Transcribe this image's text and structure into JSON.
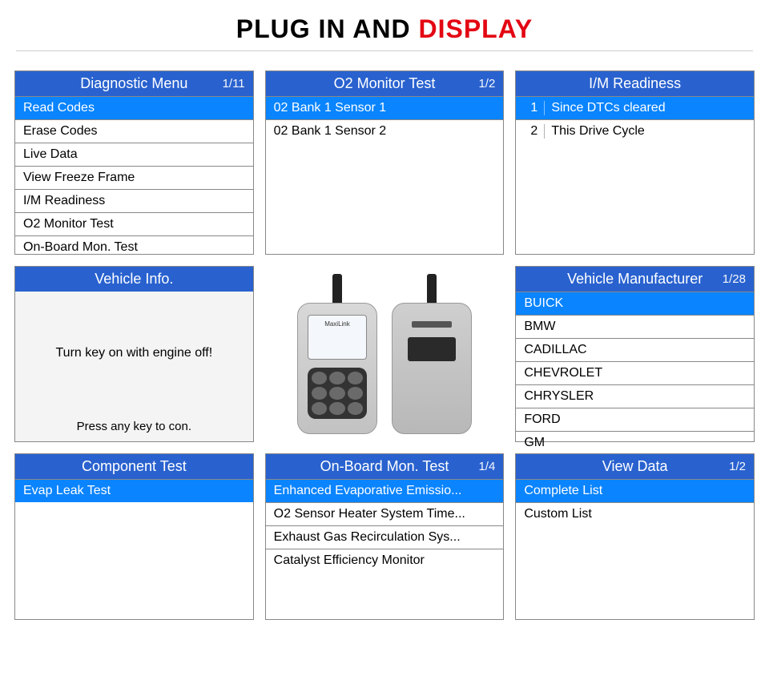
{
  "title": {
    "part1": "PLUG IN AND ",
    "part2": "DISPLAY"
  },
  "colors": {
    "header_bg": "#2962cf",
    "selected_bg": "#0a84ff",
    "accent": "#e30613",
    "border": "#888888"
  },
  "panels": {
    "diagnostic": {
      "title": "Diagnostic Menu",
      "page": "1/11",
      "items": [
        "Read Codes",
        "Erase Codes",
        "Live Data",
        "View Freeze Frame",
        "I/M Readiness",
        "O2 Monitor Test",
        "On-Board Mon. Test"
      ],
      "selected_index": 0
    },
    "o2_monitor": {
      "title": "O2 Monitor Test",
      "page": "1/2",
      "items": [
        "02 Bank 1 Sensor 1",
        "02 Bank 1 Sensor 2"
      ],
      "selected_index": 0
    },
    "im_readiness": {
      "title": "I/M Readiness",
      "page": "",
      "items": [
        {
          "n": "1",
          "label": "Since DTCs cleared"
        },
        {
          "n": "2",
          "label": "This Drive Cycle"
        }
      ],
      "selected_index": 0
    },
    "vehicle_info": {
      "title": "Vehicle Info.",
      "message": "Turn key on with engine off!",
      "footer": "Press any key to con."
    },
    "vehicle_mfr": {
      "title": "Vehicle Manufacturer",
      "page": "1/28",
      "items": [
        "BUICK",
        "BMW",
        "CADILLAC",
        "CHEVROLET",
        "CHRYSLER",
        "FORD",
        "GM"
      ],
      "selected_index": 0
    },
    "component_test": {
      "title": "Component Test",
      "page": "",
      "items": [
        "Evap Leak Test"
      ],
      "selected_index": 0
    },
    "onboard_mon": {
      "title": "On-Board Mon. Test",
      "page": "1/4",
      "items": [
        "Enhanced Evaporative Emissio...",
        "O2 Sensor Heater System Time...",
        "Exhaust Gas Recirculation Sys...",
        "Catalyst Efficiency Monitor"
      ],
      "selected_index": 0
    },
    "view_data": {
      "title": "View Data",
      "page": "1/2",
      "items": [
        "Complete List",
        "Custom List"
      ],
      "selected_index": 0
    }
  },
  "device": {
    "brand": "MaxiLink"
  }
}
